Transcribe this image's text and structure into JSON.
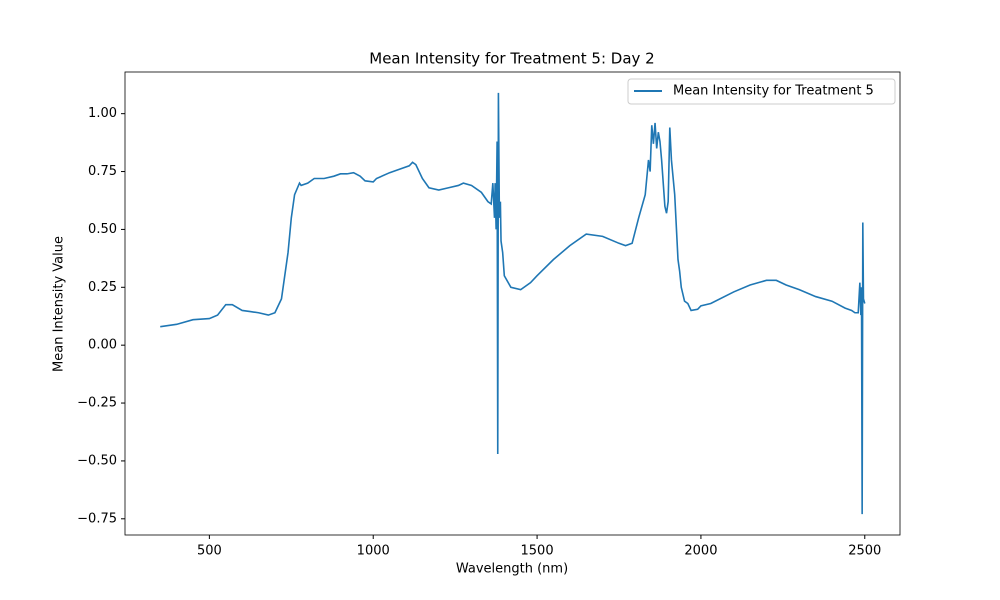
{
  "chart_data": {
    "type": "line",
    "title": "Mean Intensity for Treatment 5: Day 2",
    "x_label": "Wavelength (nm)",
    "y_label": "Mean Intensity Value",
    "x": [
      350,
      400,
      450,
      500,
      525,
      550,
      570,
      600,
      625,
      650,
      680,
      700,
      720,
      740,
      750,
      760,
      775,
      780,
      800,
      820,
      850,
      880,
      900,
      920,
      940,
      960,
      975,
      1000,
      1010,
      1050,
      1080,
      1110,
      1120,
      1130,
      1150,
      1170,
      1200,
      1230,
      1260,
      1275,
      1300,
      1330,
      1350,
      1360,
      1365,
      1370,
      1372,
      1375,
      1378,
      1380,
      1382,
      1385,
      1388,
      1390,
      1395,
      1400,
      1420,
      1450,
      1480,
      1500,
      1550,
      1600,
      1650,
      1700,
      1750,
      1770,
      1790,
      1810,
      1830,
      1840,
      1845,
      1850,
      1855,
      1860,
      1865,
      1870,
      1875,
      1880,
      1890,
      1895,
      1900,
      1905,
      1910,
      1920,
      1930,
      1935,
      1940,
      1950,
      1960,
      1970,
      1990,
      2000,
      2030,
      2100,
      2150,
      2200,
      2230,
      2260,
      2300,
      2350,
      2400,
      2440,
      2460,
      2470,
      2480,
      2485,
      2488,
      2490,
      2492,
      2494,
      2496,
      2500
    ],
    "series": [
      {
        "name": "Mean Intensity for Treatment 5",
        "color": "#1f77b4",
        "values": [
          0.08,
          0.09,
          0.11,
          0.115,
          0.13,
          0.175,
          0.175,
          0.15,
          0.145,
          0.14,
          0.13,
          0.14,
          0.2,
          0.4,
          0.55,
          0.65,
          0.7,
          0.69,
          0.7,
          0.72,
          0.72,
          0.73,
          0.74,
          0.74,
          0.745,
          0.73,
          0.71,
          0.705,
          0.72,
          0.745,
          0.76,
          0.775,
          0.79,
          0.78,
          0.72,
          0.68,
          0.67,
          0.68,
          0.69,
          0.7,
          0.69,
          0.66,
          0.62,
          0.61,
          0.7,
          0.55,
          0.7,
          0.5,
          0.88,
          -0.47,
          1.09,
          0.55,
          0.62,
          0.45,
          0.4,
          0.3,
          0.25,
          0.24,
          0.27,
          0.3,
          0.37,
          0.43,
          0.48,
          0.47,
          0.44,
          0.43,
          0.44,
          0.55,
          0.65,
          0.8,
          0.75,
          0.95,
          0.87,
          0.96,
          0.85,
          0.92,
          0.88,
          0.8,
          0.6,
          0.57,
          0.62,
          0.94,
          0.8,
          0.65,
          0.37,
          0.32,
          0.25,
          0.19,
          0.18,
          0.15,
          0.155,
          0.17,
          0.18,
          0.23,
          0.26,
          0.28,
          0.28,
          0.26,
          0.24,
          0.21,
          0.19,
          0.16,
          0.15,
          0.14,
          0.14,
          0.27,
          0.13,
          0.25,
          -0.73,
          0.53,
          0.2,
          0.18
        ]
      }
    ],
    "xlim": [
      242.5,
      2607.5
    ],
    "ylim": [
      -0.82,
      1.18
    ],
    "xticks": [
      500,
      1000,
      1500,
      2000,
      2500
    ],
    "yticks": [
      {
        "value": -0.75,
        "label": "−0.75"
      },
      {
        "value": -0.5,
        "label": "−0.50"
      },
      {
        "value": -0.25,
        "label": "−0.25"
      },
      {
        "value": 0,
        "label": "0.00"
      },
      {
        "value": 0.25,
        "label": "0.25"
      },
      {
        "value": 0.5,
        "label": "0.50"
      },
      {
        "value": 0.75,
        "label": "0.75"
      },
      {
        "value": 1,
        "label": "1.00"
      }
    ],
    "legend": "upper right"
  }
}
